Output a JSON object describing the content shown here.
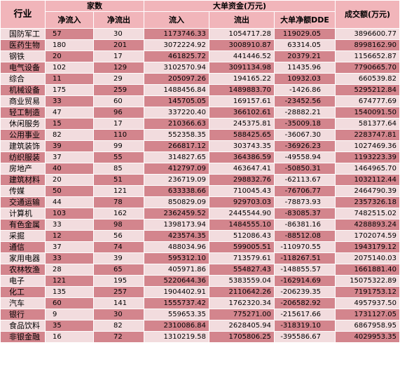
{
  "headers": {
    "industry": "行业",
    "count_group": "家数",
    "net_in": "净流入",
    "net_out": "净流出",
    "big_group": "大单资金(万元)",
    "inflow": "流入",
    "outflow": "流出",
    "net_dde": "大单净额DDE",
    "turnover": "成交额(万元)"
  },
  "rows": [
    {
      "name": "国防军工",
      "in": "57",
      "out": "30",
      "inflow": "1173746.33",
      "outflow": "1054717.28",
      "net": "119029.05",
      "turnover": "3896600.77"
    },
    {
      "name": "医药生物",
      "in": "180",
      "out": "201",
      "inflow": "3072224.92",
      "outflow": "3008910.87",
      "net": "63314.05",
      "turnover": "8998162.90"
    },
    {
      "name": "钢铁",
      "in": "20",
      "out": "17",
      "inflow": "461825.72",
      "outflow": "441446.52",
      "net": "20379.21",
      "turnover": "1156652.87"
    },
    {
      "name": "电气设备",
      "in": "102",
      "out": "129",
      "inflow": "3102570.94",
      "outflow": "3091134.98",
      "net": "11435.96",
      "turnover": "7790665.70"
    },
    {
      "name": "综合",
      "in": "11",
      "out": "29",
      "inflow": "205097.26",
      "outflow": "194165.22",
      "net": "10932.03",
      "turnover": "660539.82"
    },
    {
      "name": "机械设备",
      "in": "175",
      "out": "259",
      "inflow": "1488456.84",
      "outflow": "1489883.70",
      "net": "-1426.86",
      "turnover": "5295212.84"
    },
    {
      "name": "商业贸易",
      "in": "33",
      "out": "60",
      "inflow": "145705.05",
      "outflow": "169157.61",
      "net": "-23452.56",
      "turnover": "674777.69"
    },
    {
      "name": "轻工制造",
      "in": "47",
      "out": "96",
      "inflow": "337220.40",
      "outflow": "366102.61",
      "net": "-28882.21",
      "turnover": "1540091.50"
    },
    {
      "name": "休闲服务",
      "in": "15",
      "out": "17",
      "inflow": "210366.63",
      "outflow": "245375.81",
      "net": "-35009.18",
      "turnover": "581377.64"
    },
    {
      "name": "公用事业",
      "in": "82",
      "out": "110",
      "inflow": "552358.35",
      "outflow": "588425.65",
      "net": "-36067.30",
      "turnover": "2283747.81"
    },
    {
      "name": "建筑装饰",
      "in": "39",
      "out": "99",
      "inflow": "266817.12",
      "outflow": "303743.35",
      "net": "-36926.23",
      "turnover": "1027469.36"
    },
    {
      "name": "纺织服装",
      "in": "37",
      "out": "55",
      "inflow": "314827.65",
      "outflow": "364386.59",
      "net": "-49558.94",
      "turnover": "1193223.39"
    },
    {
      "name": "房地产",
      "in": "40",
      "out": "85",
      "inflow": "412797.09",
      "outflow": "463647.41",
      "net": "-50850.31",
      "turnover": "1464965.70"
    },
    {
      "name": "建筑材料",
      "in": "20",
      "out": "51",
      "inflow": "236719.09",
      "outflow": "298832.76",
      "net": "-62113.67",
      "turnover": "1032112.44"
    },
    {
      "name": "传媒",
      "in": "50",
      "out": "121",
      "inflow": "633338.66",
      "outflow": "710045.43",
      "net": "-76706.77",
      "turnover": "2464790.39"
    },
    {
      "name": "交通运输",
      "in": "44",
      "out": "78",
      "inflow": "850829.09",
      "outflow": "929703.03",
      "net": "-78873.93",
      "turnover": "2357326.18"
    },
    {
      "name": "计算机",
      "in": "103",
      "out": "162",
      "inflow": "2362459.52",
      "outflow": "2445544.90",
      "net": "-83085.37",
      "turnover": "7482515.02"
    },
    {
      "name": "有色金属",
      "in": "33",
      "out": "98",
      "inflow": "1398173.94",
      "outflow": "1484555.10",
      "net": "-86381.16",
      "turnover": "4288893.24"
    },
    {
      "name": "采掘",
      "in": "12",
      "out": "56",
      "inflow": "423574.35",
      "outflow": "512086.43",
      "net": "-88512.08",
      "turnover": "1702074.59"
    },
    {
      "name": "通信",
      "in": "37",
      "out": "74",
      "inflow": "488034.96",
      "outflow": "599005.51",
      "net": "-110970.55",
      "turnover": "1943179.12"
    },
    {
      "name": "家用电器",
      "in": "33",
      "out": "39",
      "inflow": "595312.10",
      "outflow": "713579.61",
      "net": "-118267.51",
      "turnover": "2075140.03"
    },
    {
      "name": "农林牧渔",
      "in": "28",
      "out": "65",
      "inflow": "405971.86",
      "outflow": "554827.43",
      "net": "-148855.57",
      "turnover": "1661881.40"
    },
    {
      "name": "电子",
      "in": "121",
      "out": "195",
      "inflow": "5220644.36",
      "outflow": "5383559.04",
      "net": "-162914.69",
      "turnover": "15075322.89"
    },
    {
      "name": "化工",
      "in": "135",
      "out": "257",
      "inflow": "1904402.91",
      "outflow": "2110642.26",
      "net": "-206239.35",
      "turnover": "7191753.12"
    },
    {
      "name": "汽车",
      "in": "60",
      "out": "141",
      "inflow": "1555737.42",
      "outflow": "1762320.34",
      "net": "-206582.92",
      "turnover": "4957937.50"
    },
    {
      "name": "银行",
      "in": "9",
      "out": "30",
      "inflow": "559653.35",
      "outflow": "775271.00",
      "net": "-215617.66",
      "turnover": "1731127.05"
    },
    {
      "name": "食品饮料",
      "in": "35",
      "out": "82",
      "inflow": "2310086.84",
      "outflow": "2628405.94",
      "net": "-318319.10",
      "turnover": "6867958.95"
    },
    {
      "name": "非银金融",
      "in": "16",
      "out": "72",
      "inflow": "1310219.58",
      "outflow": "1705806.25",
      "net": "-395586.67",
      "turnover": "4029953.35"
    }
  ]
}
